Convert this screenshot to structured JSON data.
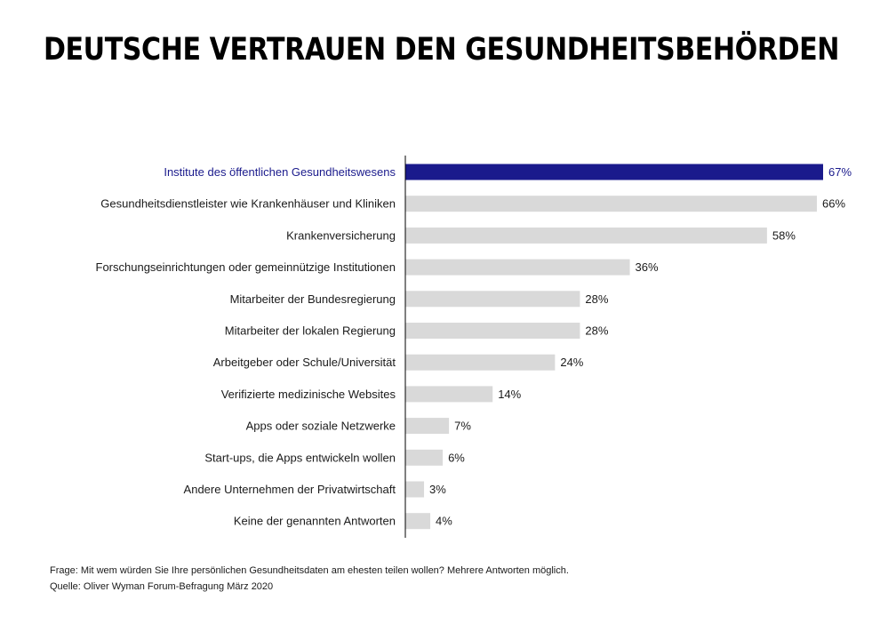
{
  "title": "DEUTSCHE VERTRAUEN DEN GESUNDHEITSBEHÖRDEN",
  "colors": {
    "highlight": "#1a1a8c",
    "bar": "#d9d9d9",
    "axis": "#000000",
    "label": "#1a1a1a"
  },
  "chart_data": {
    "type": "bar",
    "orientation": "horizontal",
    "categories": [
      "Institute des öffentlichen Gesundheitswesens",
      "Gesundheitsdienstleister wie Krankenhäuser und Kliniken",
      "Krankenversicherung",
      "Forschungseinrichtungen oder gemeinnützige Institutionen",
      "Mitarbeiter der Bundesregierung",
      "Mitarbeiter der lokalen Regierung",
      "Arbeitgeber oder Schule/Universität",
      "Verifizierte medizinische Websites",
      "Apps oder soziale Netzwerke",
      "Start-ups, die Apps entwickeln wollen",
      "Andere Unternehmen der Privatwirtschaft",
      "Keine der genannten Antworten"
    ],
    "values": [
      67,
      66,
      58,
      36,
      28,
      28,
      24,
      14,
      7,
      6,
      3,
      4
    ],
    "value_labels": [
      "67%",
      "66%",
      "58%",
      "36%",
      "28%",
      "28%",
      "24%",
      "14%",
      "7%",
      "6%",
      "3%",
      "4%"
    ],
    "highlighted_index": 0,
    "xlim": [
      0,
      67
    ],
    "grid": false,
    "legend": "none"
  },
  "footer": {
    "question": "Frage: Mit wem würden Sie Ihre persönlichen Gesundheitsdaten am ehesten teilen wollen? Mehrere Antworten möglich.",
    "source": "Quelle: Oliver Wyman Forum-Befragung März 2020"
  }
}
